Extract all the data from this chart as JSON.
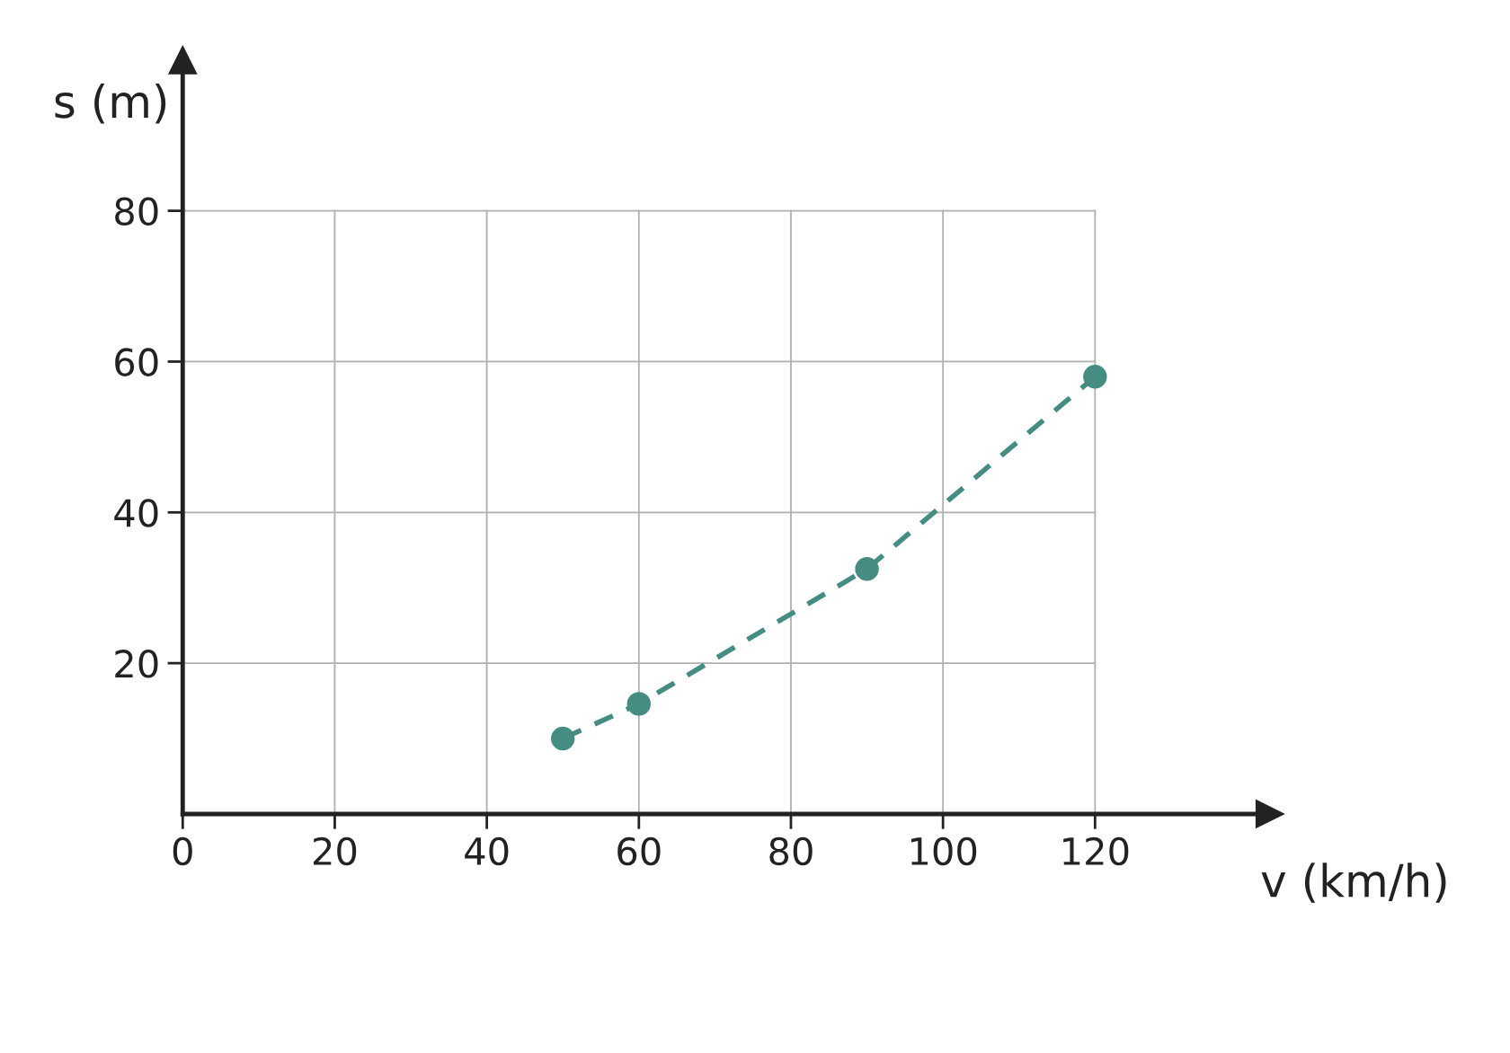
{
  "chart_data": {
    "type": "line",
    "xlabel": "v (km/h)",
    "ylabel": "s (m)",
    "x": [
      50,
      60,
      90,
      120
    ],
    "series": [
      {
        "color": "#458c82",
        "values": [
          10,
          14.6,
          32.5,
          58
        ]
      }
    ],
    "xlim": [
      0,
      143
    ],
    "ylim": [
      0,
      100
    ],
    "xticks": [
      0,
      20,
      40,
      60,
      80,
      100,
      120
    ],
    "yticks": [
      20,
      40,
      60,
      80
    ],
    "grid": true,
    "marker": "circle",
    "line_style": "dashed"
  }
}
